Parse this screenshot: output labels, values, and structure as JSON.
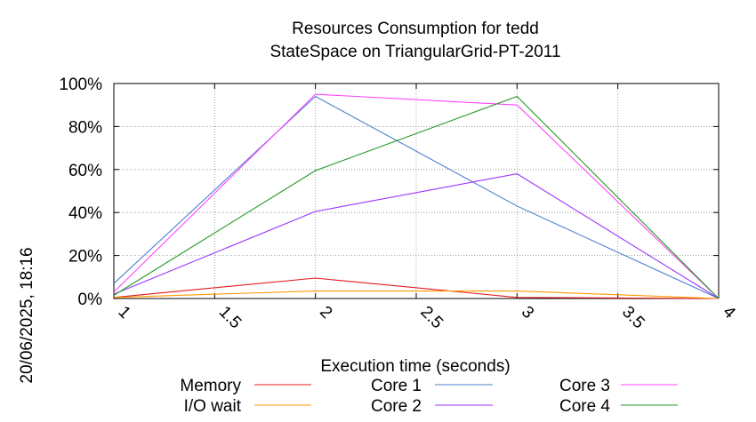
{
  "chart_data": {
    "type": "line",
    "title_line1": "Resources Consumption for tedd",
    "title_line2": "StateSpace on TriangularGrid-PT-2011",
    "xlabel": "Execution time (seconds)",
    "ylabel": "",
    "timestamp": "20/06/2025, 18:16",
    "x": [
      1,
      2,
      3,
      4
    ],
    "xlim": [
      1,
      4
    ],
    "ylim": [
      0,
      100
    ],
    "x_ticks": [
      1,
      1.5,
      2,
      2.5,
      3,
      3.5,
      4
    ],
    "x_tick_labels": [
      "1",
      "1.5",
      "2",
      "2.5",
      "3",
      "3.5",
      "4"
    ],
    "y_ticks": [
      0,
      20,
      40,
      60,
      80,
      100
    ],
    "y_tick_labels": [
      "0%",
      "20%",
      "40%",
      "60%",
      "80%",
      "100%"
    ],
    "grid": true,
    "legend_position": "bottom",
    "series": [
      {
        "name": "Memory",
        "color": "#e41a1c",
        "values": [
          0.5,
          9.5,
          0.5,
          0
        ]
      },
      {
        "name": "I/O wait",
        "color": "#ff9900",
        "values": [
          0.5,
          3.5,
          3.5,
          0
        ]
      },
      {
        "name": "Core 1",
        "color": "#4f7fcf",
        "values": [
          7,
          94,
          43,
          0
        ]
      },
      {
        "name": "Core 2",
        "color": "#9933ff",
        "values": [
          2,
          40.5,
          58,
          0
        ]
      },
      {
        "name": "Core 3",
        "color": "#ff44ff",
        "values": [
          3,
          95,
          90,
          0
        ]
      },
      {
        "name": "Core 4",
        "color": "#229922",
        "values": [
          1.5,
          59.5,
          94,
          0
        ]
      }
    ]
  }
}
